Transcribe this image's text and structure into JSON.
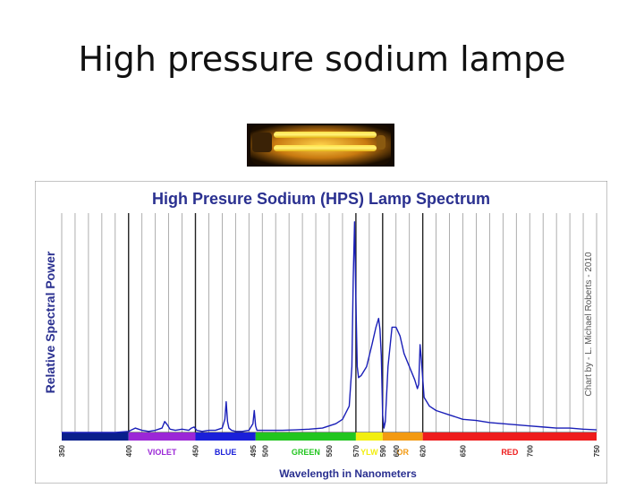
{
  "slide": {
    "title": "High pressure sodium lampe"
  },
  "lamp_photo": {
    "icon": "sodium-lamp-photo-icon"
  },
  "chart_data": {
    "type": "line",
    "title": "High Presure Sodium (HPS) Lamp Spectrum",
    "xlabel": "Wavelength in Nanometers",
    "ylabel": "Relative Spectral Power",
    "watermark": "Chart by - L. Michael Roberts - 2010",
    "xlim": [
      350,
      750
    ],
    "ylim": [
      0,
      1
    ],
    "grid": true,
    "x_ticks": [
      350,
      400,
      450,
      495,
      500,
      550,
      570,
      590,
      600,
      620,
      650,
      700,
      750
    ],
    "color_bands": [
      {
        "label": "VIOLET",
        "from": 400,
        "to": 450,
        "color": "#9b27d6"
      },
      {
        "label": "BLUE",
        "from": 450,
        "to": 495,
        "color": "#1a1fd9"
      },
      {
        "label": "GREEN",
        "from": 495,
        "to": 570,
        "color": "#22c51f"
      },
      {
        "label": "YLW",
        "from": 570,
        "to": 590,
        "color": "#f2ee10"
      },
      {
        "label": "OR",
        "from": 590,
        "to": 620,
        "color": "#f39a12"
      },
      {
        "label": "RED",
        "from": 620,
        "to": 750,
        "color": "#ee1c1c"
      }
    ],
    "uv_band_color": "#0a1f8c",
    "series": [
      {
        "color": "#1a1fb8",
        "x": [
          350,
          360,
          370,
          380,
          390,
          400,
          405,
          410,
          415,
          420,
          425,
          427,
          429,
          431,
          435,
          440,
          445,
          447,
          449,
          451,
          455,
          460,
          465,
          470,
          472,
          473,
          474,
          475,
          477,
          480,
          485,
          490,
          493,
          494,
          495,
          496,
          498,
          505,
          515,
          525,
          535,
          545,
          555,
          560,
          565,
          567,
          568,
          569,
          570,
          571,
          572,
          574,
          578,
          582,
          585,
          587,
          588,
          589,
          590,
          591,
          592,
          594,
          597,
          600,
          603,
          606,
          610,
          614,
          616,
          617,
          618,
          619,
          621,
          625,
          630,
          640,
          650,
          660,
          670,
          680,
          690,
          700,
          710,
          720,
          730,
          740,
          750
        ],
        "y": [
          0.0,
          0.0,
          0.0,
          0.0,
          0.0,
          0.005,
          0.02,
          0.01,
          0.005,
          0.01,
          0.02,
          0.05,
          0.035,
          0.015,
          0.01,
          0.015,
          0.01,
          0.02,
          0.025,
          0.01,
          0.005,
          0.01,
          0.01,
          0.02,
          0.06,
          0.14,
          0.05,
          0.02,
          0.01,
          0.005,
          0.005,
          0.01,
          0.04,
          0.1,
          0.03,
          0.01,
          0.01,
          0.01,
          0.01,
          0.012,
          0.015,
          0.02,
          0.04,
          0.06,
          0.12,
          0.3,
          0.7,
          0.96,
          0.6,
          0.3,
          0.25,
          0.26,
          0.3,
          0.4,
          0.48,
          0.52,
          0.47,
          0.35,
          0.08,
          0.02,
          0.05,
          0.3,
          0.48,
          0.48,
          0.44,
          0.36,
          0.3,
          0.24,
          0.2,
          0.22,
          0.4,
          0.33,
          0.16,
          0.12,
          0.1,
          0.08,
          0.06,
          0.055,
          0.045,
          0.04,
          0.035,
          0.03,
          0.025,
          0.02,
          0.02,
          0.015,
          0.012
        ]
      }
    ]
  }
}
